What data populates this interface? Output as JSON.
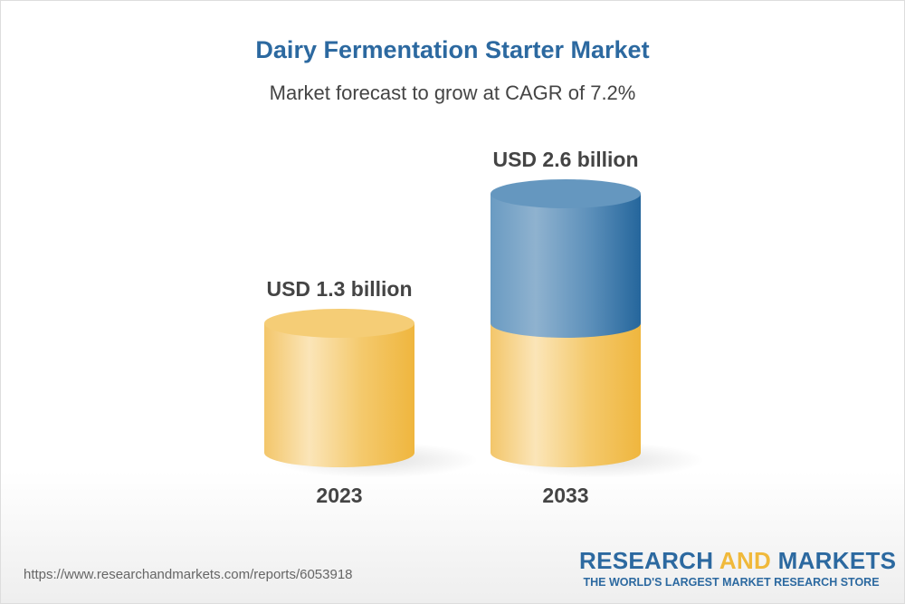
{
  "chart_data": {
    "type": "bar",
    "title": "Dairy Fermentation Starter Market",
    "subtitle": "Market forecast to grow at CAGR of 7.2%",
    "categories": [
      "2023",
      "2033"
    ],
    "values": [
      1.3,
      2.6
    ],
    "unit": "USD billion",
    "data_labels": [
      "USD 1.3 billion",
      "USD 2.6 billion"
    ],
    "style": "3d-cylinder",
    "colors": {
      "base": "#f0b93b",
      "growth": "#2c69a0"
    }
  },
  "footer": {
    "url": "https://www.researchandmarkets.com/reports/6053918",
    "logo_part1": "RESEARCH ",
    "logo_part2": "AND",
    "logo_part3": " MARKETS",
    "tagline": "THE WORLD'S LARGEST MARKET RESEARCH STORE"
  }
}
